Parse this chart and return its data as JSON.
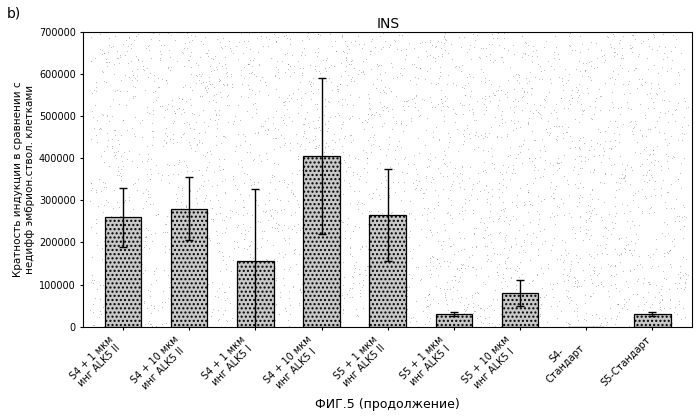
{
  "title": "INS",
  "xlabel": "ФИГ.5 (продолжение)",
  "ylabel_line1": "Кратность индукции в сравнении с",
  "ylabel_line2": "недифф эмбрион.ствол. клетками",
  "label_b": "b)",
  "categories": [
    "S4 + 1 мкм\nинг ALK5 II",
    "S4 + 10 мкм\nинг ALK5 II",
    "S4 + 1 мкм\nинг ALK5 I",
    "S4 + 10 мкм\nинг ALK5 I",
    "S5 + 1 мкм\nинг ALK5 II",
    "S5 + 1 мкм\nинг ALK5 I",
    "S5 + 10 мкм\nинг ALK5 I",
    "S4-\nСтандарт",
    "S5-Стандарт"
  ],
  "values": [
    260000,
    280000,
    157000,
    405000,
    265000,
    30000,
    80000,
    0,
    30000
  ],
  "errors": [
    70000,
    75000,
    170000,
    185000,
    110000,
    5000,
    30000,
    0,
    5000
  ],
  "ylim": [
    0,
    700000
  ],
  "yticks": [
    0,
    100000,
    200000,
    300000,
    400000,
    500000,
    600000,
    700000
  ],
  "bar_edgecolor": "#000000",
  "background_color": "#ffffff",
  "title_fontsize": 10,
  "axis_label_fontsize": 7.5,
  "tick_fontsize": 7,
  "xlabel_fontsize": 9
}
